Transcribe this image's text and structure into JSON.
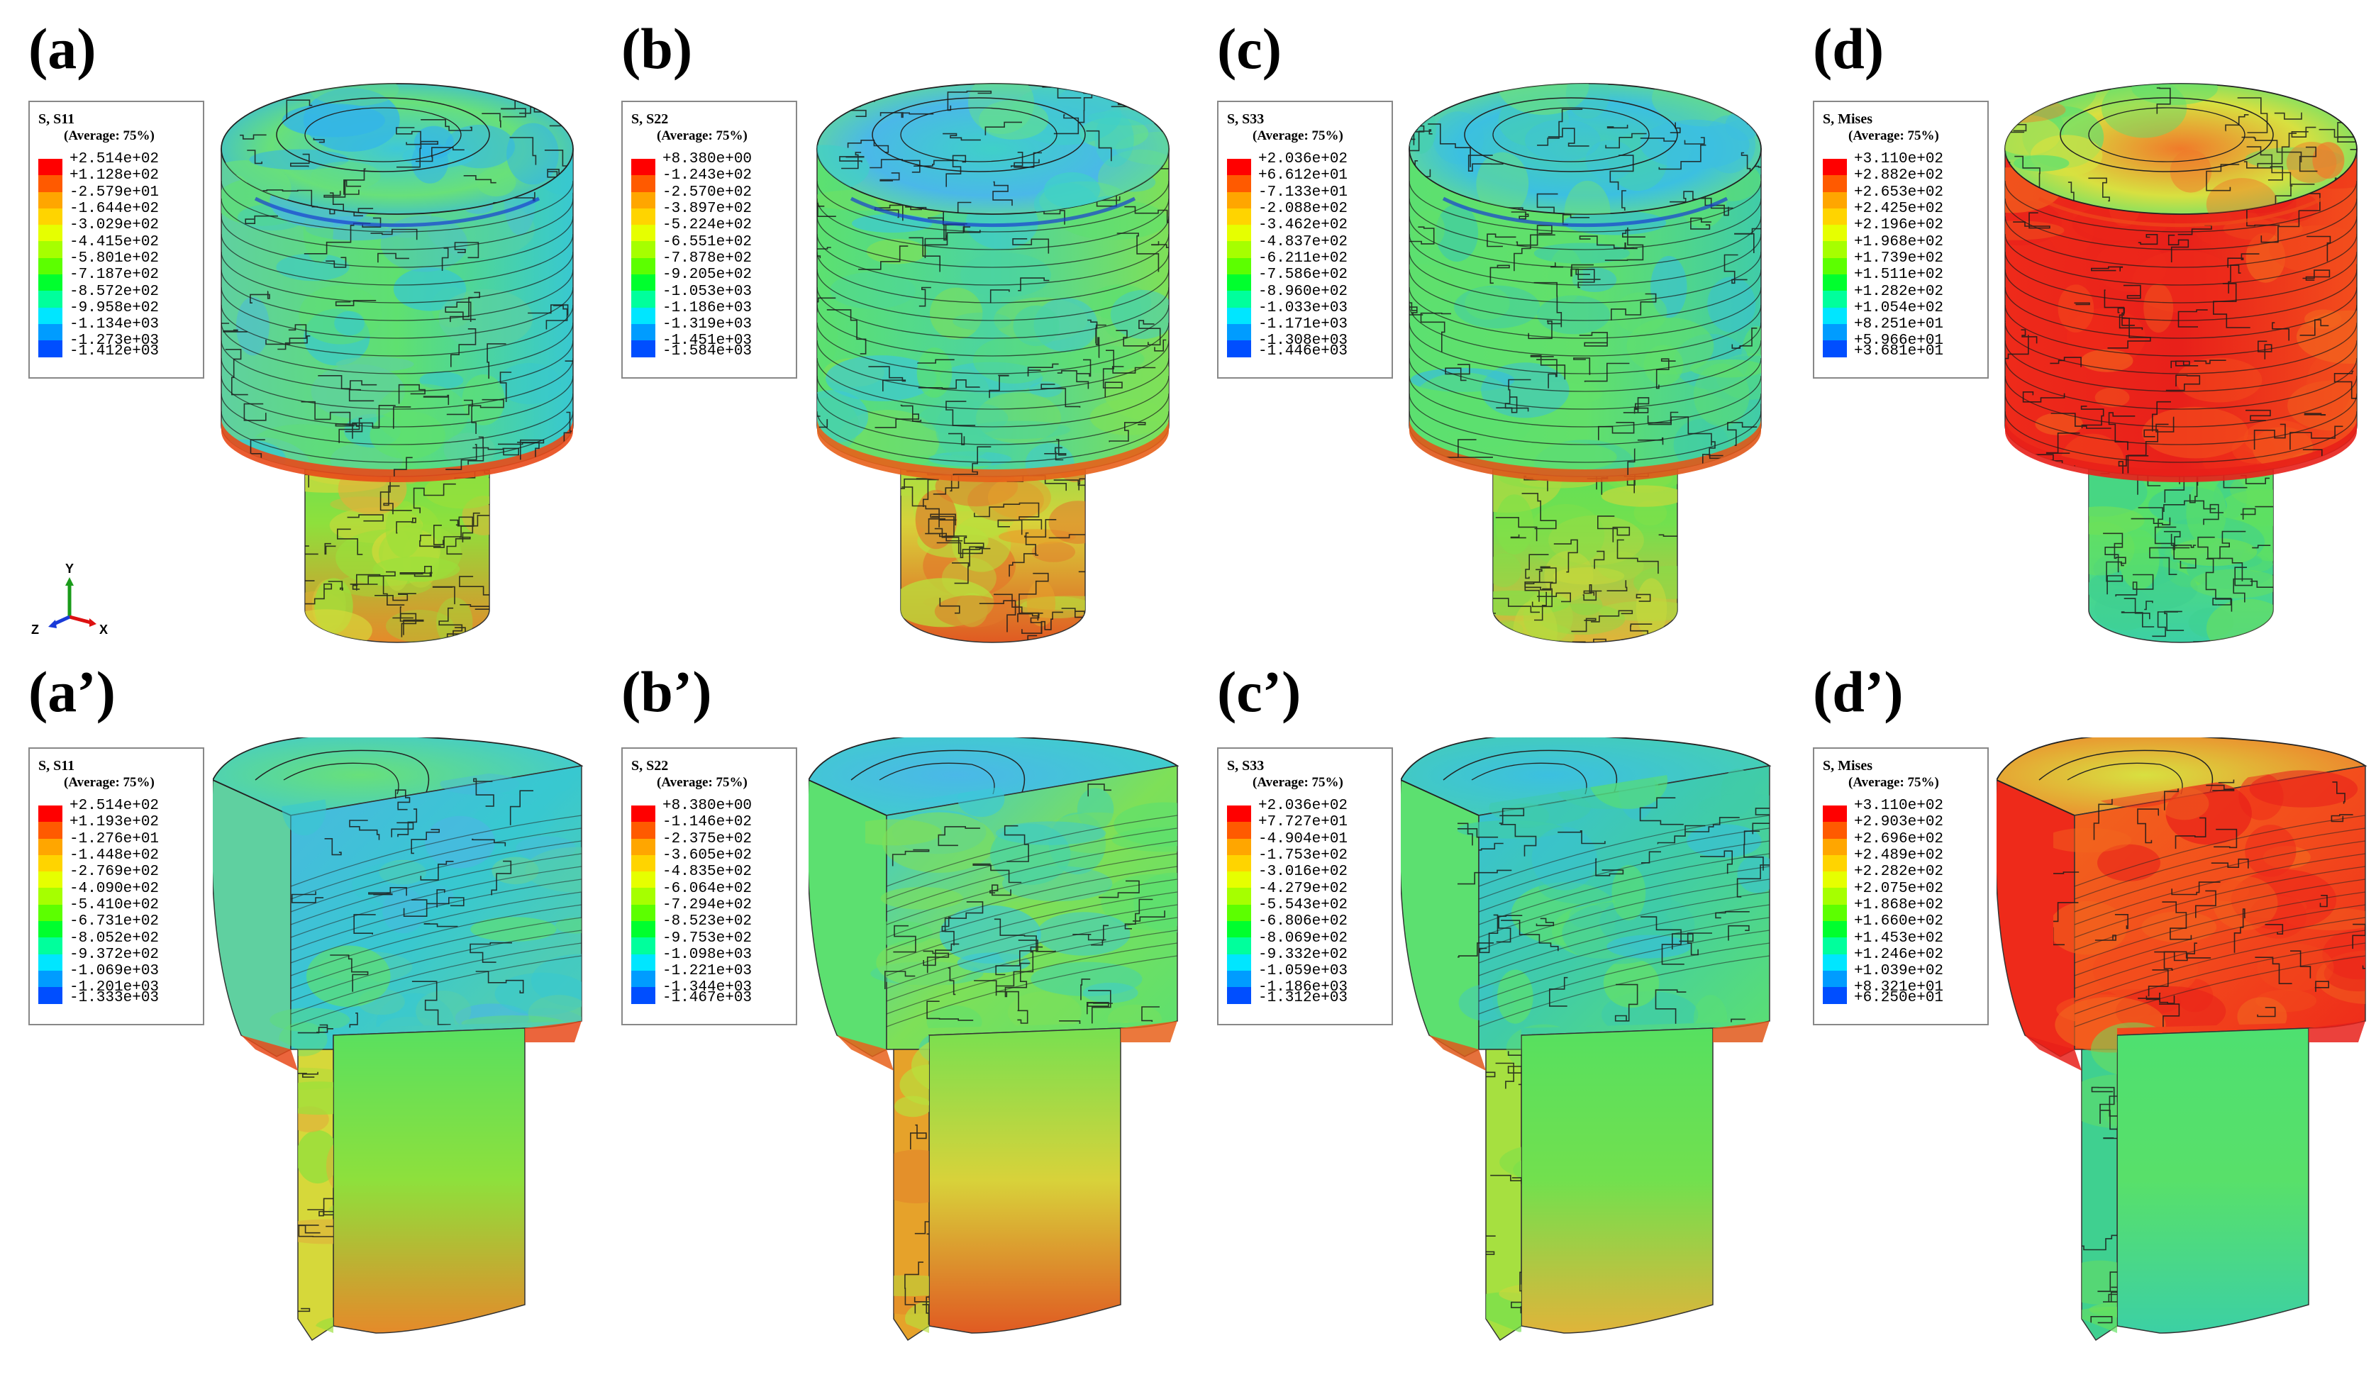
{
  "panels": [
    {
      "label": "(a)",
      "title": "S, S11",
      "subtitle": "(Average: 75%)",
      "values": [
        "+2.514e+02",
        "+1.128e+02",
        "-2.579e+01",
        "-1.644e+02",
        "-3.029e+02",
        "-4.415e+02",
        "-5.801e+02",
        "-7.187e+02",
        "-8.572e+02",
        "-9.958e+02",
        "-1.134e+03",
        "-1.273e+03",
        "-1.412e+03"
      ],
      "view": "full",
      "field": "s11"
    },
    {
      "label": "(b)",
      "title": "S, S22",
      "subtitle": "(Average: 75%)",
      "values": [
        "+8.380e+00",
        "-1.243e+02",
        "-2.570e+02",
        "-3.897e+02",
        "-5.224e+02",
        "-6.551e+02",
        "-7.878e+02",
        "-9.205e+02",
        "-1.053e+03",
        "-1.186e+03",
        "-1.319e+03",
        "-1.451e+03",
        "-1.584e+03"
      ],
      "view": "full",
      "field": "s22"
    },
    {
      "label": "(c)",
      "title": "S, S33",
      "subtitle": "(Average: 75%)",
      "values": [
        "+2.036e+02",
        "+6.612e+01",
        "-7.133e+01",
        "-2.088e+02",
        "-3.462e+02",
        "-4.837e+02",
        "-6.211e+02",
        "-7.586e+02",
        "-8.960e+02",
        "-1.033e+03",
        "-1.171e+03",
        "-1.308e+03",
        "-1.446e+03"
      ],
      "view": "full",
      "field": "s33"
    },
    {
      "label": "(d)",
      "title": "S, Mises",
      "subtitle": "(Average: 75%)",
      "values": [
        "+3.110e+02",
        "+2.882e+02",
        "+2.653e+02",
        "+2.425e+02",
        "+2.196e+02",
        "+1.968e+02",
        "+1.739e+02",
        "+1.511e+02",
        "+1.282e+02",
        "+1.054e+02",
        "+8.251e+01",
        "+5.966e+01",
        "+3.681e+01"
      ],
      "view": "full",
      "field": "mises"
    },
    {
      "label": "(a’)",
      "title": "S, S11",
      "subtitle": "(Average: 75%)",
      "values": [
        "+2.514e+02",
        "+1.193e+02",
        "-1.276e+01",
        "-1.448e+02",
        "-2.769e+02",
        "-4.090e+02",
        "-5.410e+02",
        "-6.731e+02",
        "-8.052e+02",
        "-9.372e+02",
        "-1.069e+03",
        "-1.201e+03",
        "-1.333e+03"
      ],
      "view": "cut",
      "field": "s11"
    },
    {
      "label": "(b’)",
      "title": "S, S22",
      "subtitle": "(Average: 75%)",
      "values": [
        "+8.380e+00",
        "-1.146e+02",
        "-2.375e+02",
        "-3.605e+02",
        "-4.835e+02",
        "-6.064e+02",
        "-7.294e+02",
        "-8.523e+02",
        "-9.753e+02",
        "-1.098e+03",
        "-1.221e+03",
        "-1.344e+03",
        "-1.467e+03"
      ],
      "view": "cut",
      "field": "s22"
    },
    {
      "label": "(c’)",
      "title": "S, S33",
      "subtitle": "(Average: 75%)",
      "values": [
        "+2.036e+02",
        "+7.727e+01",
        "-4.904e+01",
        "-1.753e+02",
        "-3.016e+02",
        "-4.279e+02",
        "-5.543e+02",
        "-6.806e+02",
        "-8.069e+02",
        "-9.332e+02",
        "-1.059e+03",
        "-1.186e+03",
        "-1.312e+03"
      ],
      "view": "cut",
      "field": "s33"
    },
    {
      "label": "(d’)",
      "title": "S, Mises",
      "subtitle": "(Average: 75%)",
      "values": [
        "+3.110e+02",
        "+2.903e+02",
        "+2.696e+02",
        "+2.489e+02",
        "+2.282e+02",
        "+2.075e+02",
        "+1.868e+02",
        "+1.660e+02",
        "+1.453e+02",
        "+1.246e+02",
        "+1.039e+02",
        "+8.321e+01",
        "+6.250e+01"
      ],
      "view": "cut",
      "field": "mises"
    }
  ],
  "legend_colors": [
    "#ff0000",
    "#ff5a00",
    "#ffa600",
    "#ffd400",
    "#e6ff00",
    "#a6ff00",
    "#5cff00",
    "#00ff2e",
    "#00ff9c",
    "#00e6ff",
    "#009cff",
    "#004eff",
    "#0000ff"
  ],
  "triad": {
    "y": "Y",
    "x": "X",
    "z": "Z"
  }
}
